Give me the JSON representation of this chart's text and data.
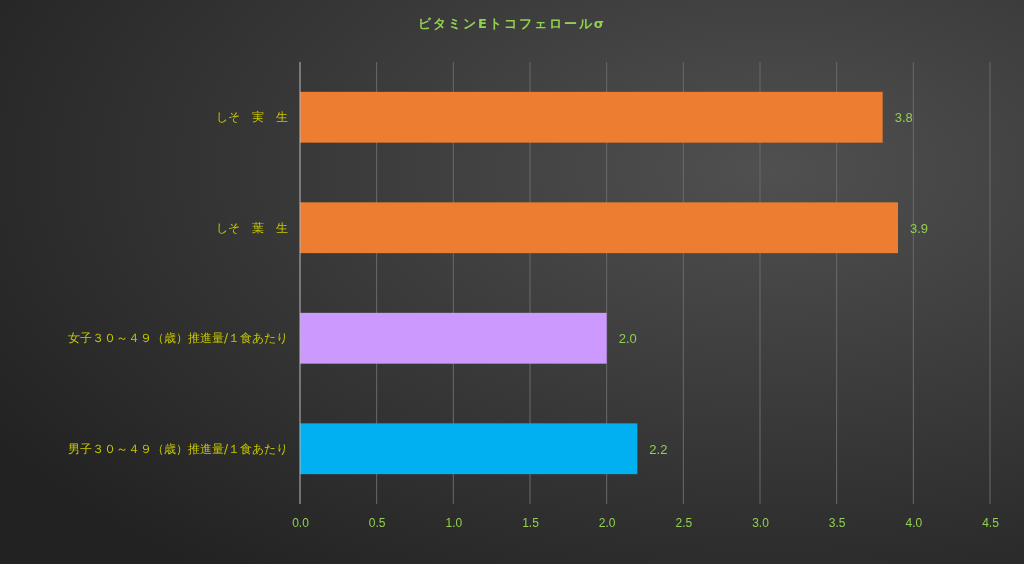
{
  "chart_data": {
    "type": "bar",
    "orientation": "horizontal",
    "title": "ビタミンEトコフェロールσ",
    "categories": [
      "しそ　実　生",
      "しそ　葉　生",
      "女子３０～４９（歳）推進量/１食あたり",
      "男子３０～４９（歳）推進量/１食あたり"
    ],
    "values": [
      3.8,
      3.9,
      2.0,
      2.2
    ],
    "colors": [
      "#ed7d31",
      "#ed7d31",
      "#cc99ff",
      "#00b0f0"
    ],
    "xlim": [
      0,
      4.5
    ],
    "xticks": [
      {
        "value": 0,
        "label": "0.0"
      },
      {
        "value": 0.5,
        "label": "0.5"
      },
      {
        "value": 1,
        "label": "1.0"
      },
      {
        "value": 1.5,
        "label": "1.5"
      },
      {
        "value": 2,
        "label": "2.0"
      },
      {
        "value": 2.5,
        "label": "2.5"
      },
      {
        "value": 3,
        "label": "3.0"
      },
      {
        "value": 3.5,
        "label": "3.5"
      },
      {
        "value": 4,
        "label": "4.0"
      },
      {
        "value": 4.5,
        "label": "4.5"
      }
    ],
    "value_labels": [
      "3.8",
      "3.9",
      "2.0",
      "2.2"
    ],
    "grid": "x"
  }
}
